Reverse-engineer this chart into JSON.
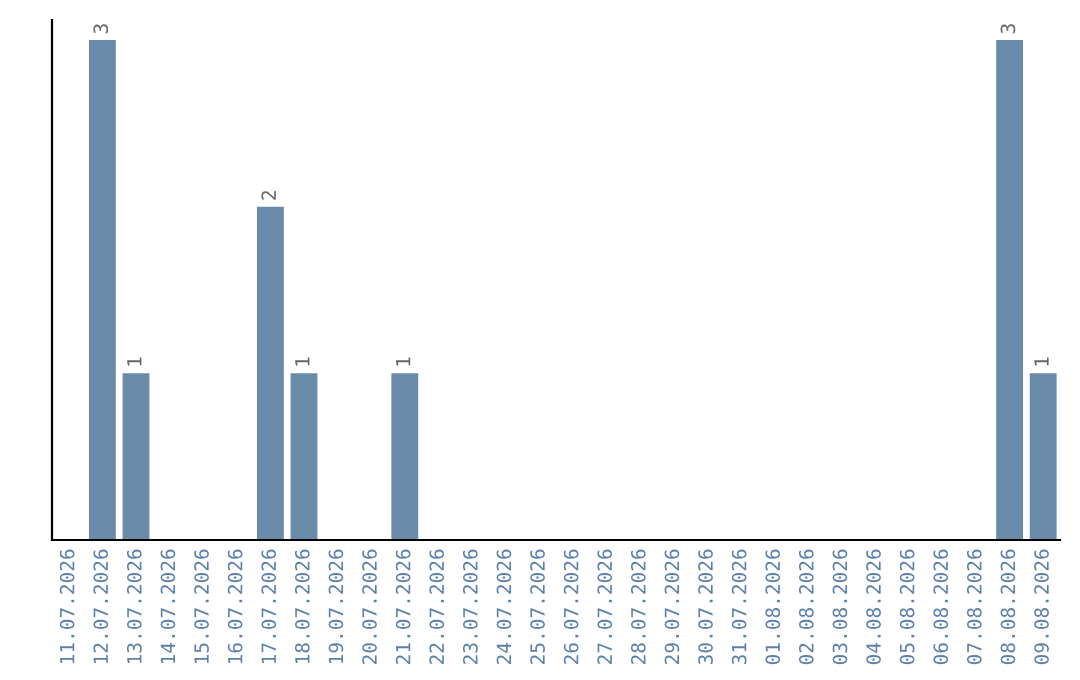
{
  "chart_data": {
    "type": "bar",
    "categories": [
      "11.07.2026",
      "12.07.2026",
      "13.07.2026",
      "14.07.2026",
      "15.07.2026",
      "16.07.2026",
      "17.07.2026",
      "18.07.2026",
      "19.07.2026",
      "20.07.2026",
      "21.07.2026",
      "22.07.2026",
      "23.07.2026",
      "24.07.2026",
      "25.07.2026",
      "26.07.2026",
      "27.07.2026",
      "28.07.2026",
      "29.07.2026",
      "30.07.2026",
      "31.07.2026",
      "01.08.2026",
      "02.08.2026",
      "03.08.2026",
      "04.08.2026",
      "05.08.2026",
      "06.08.2026",
      "07.08.2026",
      "08.08.2026",
      "09.08.2026"
    ],
    "values": [
      0,
      3,
      1,
      0,
      0,
      0,
      2,
      1,
      0,
      0,
      1,
      0,
      0,
      0,
      0,
      0,
      0,
      0,
      0,
      0,
      0,
      0,
      0,
      0,
      0,
      0,
      0,
      0,
      3,
      1
    ],
    "value_labels": [
      null,
      "3",
      "1",
      null,
      null,
      null,
      "2",
      "1",
      null,
      null,
      "1",
      null,
      null,
      null,
      null,
      null,
      null,
      null,
      null,
      null,
      null,
      null,
      null,
      null,
      null,
      null,
      null,
      null,
      "3",
      "1"
    ],
    "color": "#6a8caa",
    "ylim": [
      0,
      3.12
    ],
    "tick_labels": "x",
    "grid": false,
    "legend": false
  }
}
